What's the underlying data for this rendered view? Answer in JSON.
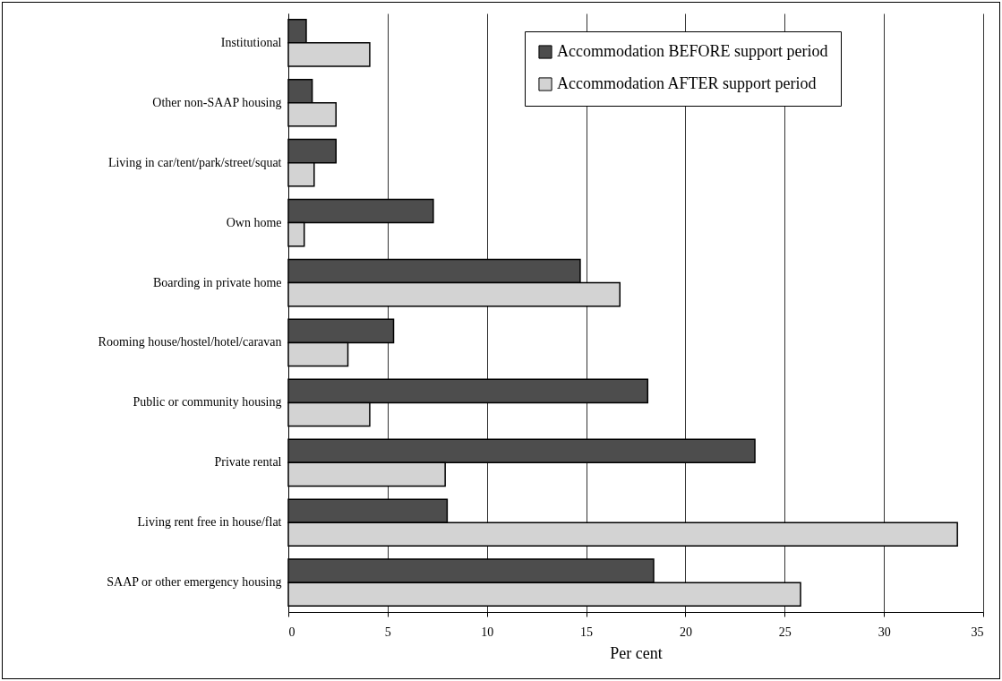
{
  "chart_data": {
    "type": "bar",
    "orientation": "horizontal",
    "xlabel": "Per cent",
    "categories": [
      "Institutional",
      "Other non-SAAP housing",
      "Living in car/tent/park/street/squat",
      "Own home",
      "Boarding in private home",
      "Rooming house/hostel/hotel/caravan",
      "Public or community housing",
      "Private rental",
      "Living rent free in house/flat",
      "SAAP or other emergency housing"
    ],
    "series": [
      {
        "name": "Accommodation BEFORE support period",
        "color": "#4d4d4d",
        "values": [
          0.9,
          1.2,
          2.4,
          7.3,
          14.7,
          5.3,
          18.1,
          23.5,
          8.0,
          18.4
        ]
      },
      {
        "name": "Accommodation AFTER support period",
        "color": "#d3d3d3",
        "values": [
          4.1,
          2.4,
          1.3,
          0.8,
          16.7,
          3.0,
          4.1,
          7.9,
          33.7,
          25.8
        ]
      }
    ],
    "xlim": [
      0,
      35
    ],
    "xticks": [
      0,
      5,
      10,
      15,
      20,
      25,
      30,
      35
    ],
    "grid": "x",
    "legend": "top right"
  }
}
